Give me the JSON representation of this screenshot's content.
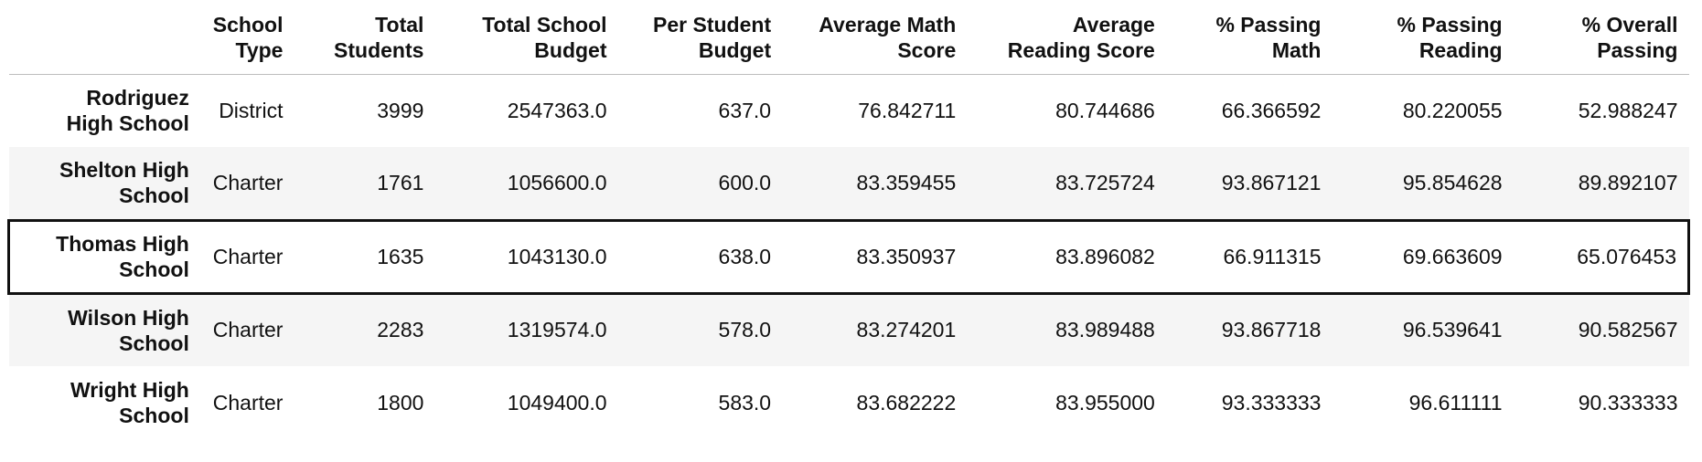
{
  "table": {
    "columns": [
      {
        "line1": "",
        "line2": ""
      },
      {
        "line1": "School",
        "line2": "Type"
      },
      {
        "line1": "Total",
        "line2": "Students"
      },
      {
        "line1": "Total School",
        "line2": "Budget"
      },
      {
        "line1": "Per Student",
        "line2": "Budget"
      },
      {
        "line1": "Average Math",
        "line2": "Score"
      },
      {
        "line1": "Average",
        "line2": "Reading Score"
      },
      {
        "line1": "% Passing",
        "line2": "Math"
      },
      {
        "line1": "% Passing",
        "line2": "Reading"
      },
      {
        "line1": "% Overall",
        "line2": "Passing"
      }
    ],
    "rows": [
      {
        "name_line1": "Rodriguez",
        "name_line2": "High School",
        "cells": [
          "District",
          "3999",
          "2547363.0",
          "637.0",
          "76.842711",
          "80.744686",
          "66.366592",
          "80.220055",
          "52.988247"
        ]
      },
      {
        "name_line1": "Shelton High",
        "name_line2": "School",
        "cells": [
          "Charter",
          "1761",
          "1056600.0",
          "600.0",
          "83.359455",
          "83.725724",
          "93.867121",
          "95.854628",
          "89.892107"
        ]
      },
      {
        "name_line1": "Thomas High",
        "name_line2": "School",
        "cells": [
          "Charter",
          "1635",
          "1043130.0",
          "638.0",
          "83.350937",
          "83.896082",
          "66.911315",
          "69.663609",
          "65.076453"
        ]
      },
      {
        "name_line1": "Wilson High",
        "name_line2": "School",
        "cells": [
          "Charter",
          "2283",
          "1319574.0",
          "578.0",
          "83.274201",
          "83.989488",
          "93.867718",
          "96.539641",
          "90.582567"
        ]
      },
      {
        "name_line1": "Wright High",
        "name_line2": "School",
        "cells": [
          "Charter",
          "1800",
          "1049400.0",
          "583.0",
          "83.682222",
          "83.955000",
          "93.333333",
          "96.611111",
          "90.333333"
        ]
      }
    ]
  },
  "colors": {
    "stripe": "#f5f5f5",
    "highlight_border": "#111111",
    "header_rule": "#bdbdbd"
  }
}
